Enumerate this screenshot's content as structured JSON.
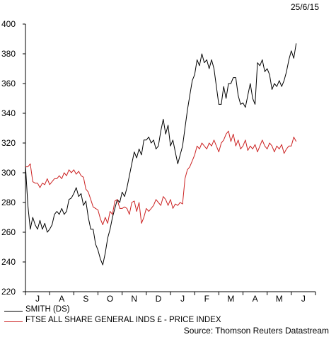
{
  "date_label": "25/6/15",
  "source": "Source: Thomson Reuters Datastream",
  "colors": {
    "series1": "#000000",
    "series2": "#cc2222",
    "axis": "#000000"
  },
  "chart_data": {
    "type": "line",
    "title": "",
    "xlabel": "",
    "ylabel": "",
    "ylim": [
      220,
      400
    ],
    "yticks": [
      220,
      240,
      260,
      280,
      300,
      320,
      340,
      360,
      380,
      400
    ],
    "xlim": [
      0,
      12
    ],
    "x_tick_labels": [
      "J",
      "A",
      "S",
      "O",
      "N",
      "D",
      "J",
      "F",
      "M",
      "A",
      "M",
      "J"
    ],
    "grid": false,
    "legend_position": "bottom-left",
    "series": [
      {
        "name": "SMITH (DS)",
        "color": "#000000",
        "points": [
          [
            0.0,
            305
          ],
          [
            0.1,
            278
          ],
          [
            0.2,
            262
          ],
          [
            0.3,
            270
          ],
          [
            0.4,
            265
          ],
          [
            0.5,
            262
          ],
          [
            0.6,
            268
          ],
          [
            0.7,
            262
          ],
          [
            0.8,
            266
          ],
          [
            0.9,
            260
          ],
          [
            1.0,
            262
          ],
          [
            1.1,
            265
          ],
          [
            1.2,
            272
          ],
          [
            1.3,
            274
          ],
          [
            1.4,
            272
          ],
          [
            1.5,
            276
          ],
          [
            1.6,
            272
          ],
          [
            1.7,
            274
          ],
          [
            1.8,
            282
          ],
          [
            1.9,
            283
          ],
          [
            2.0,
            286
          ],
          [
            2.1,
            290
          ],
          [
            2.2,
            284
          ],
          [
            2.3,
            286
          ],
          [
            2.4,
            278
          ],
          [
            2.5,
            281
          ],
          [
            2.6,
            270
          ],
          [
            2.7,
            262
          ],
          [
            2.8,
            262
          ],
          [
            2.9,
            252
          ],
          [
            3.0,
            248
          ],
          [
            3.1,
            242
          ],
          [
            3.2,
            238
          ],
          [
            3.3,
            246
          ],
          [
            3.4,
            256
          ],
          [
            3.5,
            262
          ],
          [
            3.6,
            270
          ],
          [
            3.7,
            276
          ],
          [
            3.8,
            282
          ],
          [
            3.9,
            280
          ],
          [
            4.0,
            287
          ],
          [
            4.1,
            284
          ],
          [
            4.2,
            290
          ],
          [
            4.3,
            298
          ],
          [
            4.4,
            306
          ],
          [
            4.5,
            314
          ],
          [
            4.6,
            310
          ],
          [
            4.7,
            316
          ],
          [
            4.8,
            312
          ],
          [
            4.9,
            322
          ],
          [
            5.0,
            322
          ],
          [
            5.1,
            324
          ],
          [
            5.2,
            320
          ],
          [
            5.3,
            322
          ],
          [
            5.4,
            316
          ],
          [
            5.5,
            318
          ],
          [
            5.6,
            328
          ],
          [
            5.7,
            336
          ],
          [
            5.8,
            326
          ],
          [
            5.9,
            332
          ],
          [
            6.0,
            318
          ],
          [
            6.1,
            322
          ],
          [
            6.2,
            314
          ],
          [
            6.3,
            306
          ],
          [
            6.4,
            312
          ],
          [
            6.5,
            318
          ],
          [
            6.6,
            330
          ],
          [
            6.7,
            342
          ],
          [
            6.8,
            352
          ],
          [
            6.9,
            362
          ],
          [
            7.0,
            366
          ],
          [
            7.1,
            376
          ],
          [
            7.2,
            372
          ],
          [
            7.3,
            380
          ],
          [
            7.4,
            374
          ],
          [
            7.5,
            376
          ],
          [
            7.6,
            370
          ],
          [
            7.7,
            376
          ],
          [
            7.8,
            370
          ],
          [
            7.9,
            358
          ],
          [
            8.0,
            346
          ],
          [
            8.1,
            346
          ],
          [
            8.2,
            358
          ],
          [
            8.3,
            350
          ],
          [
            8.4,
            360
          ],
          [
            8.5,
            360
          ],
          [
            8.6,
            364
          ],
          [
            8.7,
            364
          ],
          [
            8.8,
            352
          ],
          [
            8.9,
            346
          ],
          [
            9.0,
            347
          ],
          [
            9.1,
            344
          ],
          [
            9.2,
            352
          ],
          [
            9.3,
            360
          ],
          [
            9.4,
            350
          ],
          [
            9.5,
            346
          ],
          [
            9.6,
            374
          ],
          [
            9.7,
            372
          ],
          [
            9.8,
            376
          ],
          [
            9.9,
            368
          ],
          [
            10.0,
            370
          ],
          [
            10.1,
            366
          ],
          [
            10.2,
            356
          ],
          [
            10.3,
            360
          ],
          [
            10.4,
            358
          ],
          [
            10.5,
            362
          ],
          [
            10.6,
            358
          ],
          [
            10.7,
            362
          ],
          [
            10.8,
            368
          ],
          [
            10.9,
            376
          ],
          [
            11.0,
            382
          ],
          [
            11.1,
            377
          ],
          [
            11.2,
            387
          ]
        ]
      },
      {
        "name": "FTSE ALL SHARE GENERAL INDS £ - PRICE INDEX",
        "color": "#cc2222",
        "points": [
          [
            0.0,
            304
          ],
          [
            0.1,
            304
          ],
          [
            0.2,
            306
          ],
          [
            0.3,
            294
          ],
          [
            0.4,
            293
          ],
          [
            0.5,
            293
          ],
          [
            0.6,
            290
          ],
          [
            0.7,
            293
          ],
          [
            0.8,
            292
          ],
          [
            0.9,
            296
          ],
          [
            1.0,
            292
          ],
          [
            1.1,
            294
          ],
          [
            1.2,
            296
          ],
          [
            1.3,
            296
          ],
          [
            1.4,
            298
          ],
          [
            1.5,
            296
          ],
          [
            1.6,
            300
          ],
          [
            1.7,
            298
          ],
          [
            1.8,
            302
          ],
          [
            1.9,
            300
          ],
          [
            2.0,
            302
          ],
          [
            2.1,
            299
          ],
          [
            2.2,
            301
          ],
          [
            2.3,
            298
          ],
          [
            2.4,
            297
          ],
          [
            2.5,
            289
          ],
          [
            2.6,
            287
          ],
          [
            2.7,
            282
          ],
          [
            2.8,
            277
          ],
          [
            2.9,
            276
          ],
          [
            3.0,
            275
          ],
          [
            3.1,
            269
          ],
          [
            3.2,
            265
          ],
          [
            3.3,
            270
          ],
          [
            3.4,
            266
          ],
          [
            3.5,
            274
          ],
          [
            3.6,
            272
          ],
          [
            3.7,
            281
          ],
          [
            3.8,
            282
          ],
          [
            3.9,
            276
          ],
          [
            4.0,
            276
          ],
          [
            4.1,
            277
          ],
          [
            4.2,
            276
          ],
          [
            4.3,
            272
          ],
          [
            4.4,
            280
          ],
          [
            4.5,
            281
          ],
          [
            4.6,
            274
          ],
          [
            4.7,
            280
          ],
          [
            4.8,
            266
          ],
          [
            4.9,
            270
          ],
          [
            5.0,
            276
          ],
          [
            5.1,
            274
          ],
          [
            5.2,
            276
          ],
          [
            5.3,
            278
          ],
          [
            5.4,
            282
          ],
          [
            5.5,
            280
          ],
          [
            5.6,
            278
          ],
          [
            5.7,
            284
          ],
          [
            5.8,
            282
          ],
          [
            5.9,
            278
          ],
          [
            6.0,
            282
          ],
          [
            6.1,
            276
          ],
          [
            6.2,
            279
          ],
          [
            6.3,
            278
          ],
          [
            6.4,
            280
          ],
          [
            6.5,
            279
          ],
          [
            6.6,
            296
          ],
          [
            6.7,
            302
          ],
          [
            6.8,
            304
          ],
          [
            6.9,
            308
          ],
          [
            7.0,
            312
          ],
          [
            7.1,
            318
          ],
          [
            7.2,
            316
          ],
          [
            7.3,
            320
          ],
          [
            7.4,
            318
          ],
          [
            7.5,
            316
          ],
          [
            7.6,
            320
          ],
          [
            7.7,
            318
          ],
          [
            7.8,
            322
          ],
          [
            7.9,
            318
          ],
          [
            8.0,
            314
          ],
          [
            8.1,
            320
          ],
          [
            8.2,
            322
          ],
          [
            8.3,
            326
          ],
          [
            8.4,
            328
          ],
          [
            8.5,
            321
          ],
          [
            8.6,
            326
          ],
          [
            8.7,
            318
          ],
          [
            8.8,
            322
          ],
          [
            8.9,
            316
          ],
          [
            9.0,
            318
          ],
          [
            9.1,
            322
          ],
          [
            9.2,
            315
          ],
          [
            9.3,
            318
          ],
          [
            9.4,
            316
          ],
          [
            9.5,
            319
          ],
          [
            9.6,
            314
          ],
          [
            9.7,
            318
          ],
          [
            9.8,
            322
          ],
          [
            9.9,
            318
          ],
          [
            10.0,
            316
          ],
          [
            10.1,
            320
          ],
          [
            10.2,
            318
          ],
          [
            10.3,
            314
          ],
          [
            10.4,
            318
          ],
          [
            10.5,
            316
          ],
          [
            10.6,
            319
          ],
          [
            10.7,
            313
          ],
          [
            10.8,
            316
          ],
          [
            10.9,
            318
          ],
          [
            11.0,
            318
          ],
          [
            11.1,
            324
          ],
          [
            11.2,
            321
          ]
        ]
      }
    ]
  }
}
